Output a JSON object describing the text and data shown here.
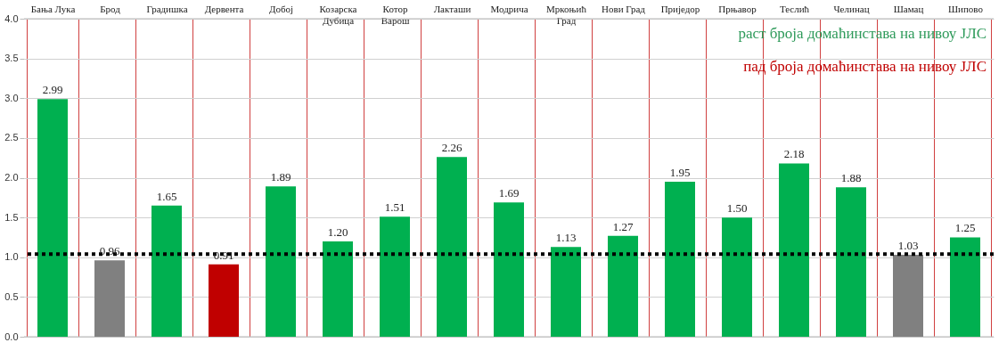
{
  "chart_data": {
    "type": "bar",
    "categories": [
      "Бања Лука",
      "Брод",
      "Градишка",
      "Дервента",
      "Добој",
      "Козарска Дубица",
      "Котор Варош",
      "Лакташи",
      "Модрича",
      "Мркоњић Град",
      "Нови Град",
      "Приједор",
      "Прњавор",
      "Теслић",
      "Челинац",
      "Шамац",
      "Шипово"
    ],
    "values": [
      2.99,
      0.96,
      1.65,
      0.91,
      1.89,
      1.2,
      1.51,
      2.26,
      1.69,
      1.13,
      1.27,
      1.95,
      1.5,
      2.18,
      1.88,
      1.03,
      1.25
    ],
    "colors": [
      "#00b050",
      "#808080",
      "#00b050",
      "#c00000",
      "#00b050",
      "#00b050",
      "#00b050",
      "#00b050",
      "#00b050",
      "#00b050",
      "#00b050",
      "#00b050",
      "#00b050",
      "#00b050",
      "#00b050",
      "#808080",
      "#00b050"
    ],
    "ylim": [
      0,
      4
    ],
    "yticks": [
      {
        "value": 0,
        "label": "0.0"
      },
      {
        "value": 0.5,
        "label": "0.5"
      },
      {
        "value": 1,
        "label": "1.0"
      },
      {
        "value": 1.5,
        "label": "1.5"
      },
      {
        "value": 2,
        "label": "2.0"
      },
      {
        "value": 2.5,
        "label": "2.5"
      },
      {
        "value": 3,
        "label": "3.0"
      },
      {
        "value": 3.5,
        "label": "3.5"
      },
      {
        "value": 4,
        "label": "4.0"
      }
    ],
    "ref_lines": [
      {
        "axis": "y",
        "value": 1.04,
        "line_style": "dotted",
        "color": "#000000"
      }
    ],
    "annotations": [
      "раст  броја домаћинстава  на нивоу ЈЛС",
      "пад броја домаћинстава на нивоу ЈЛС"
    ],
    "value_labels": [
      "2.99",
      "0.96",
      "1.65",
      "0.91",
      "1.89",
      "1.20",
      "1.51",
      "2.26",
      "1.69",
      "1.13",
      "1.27",
      "1.95",
      "1.50",
      "2.18",
      "1.88",
      "1.03",
      "1.25"
    ],
    "grid": true
  }
}
